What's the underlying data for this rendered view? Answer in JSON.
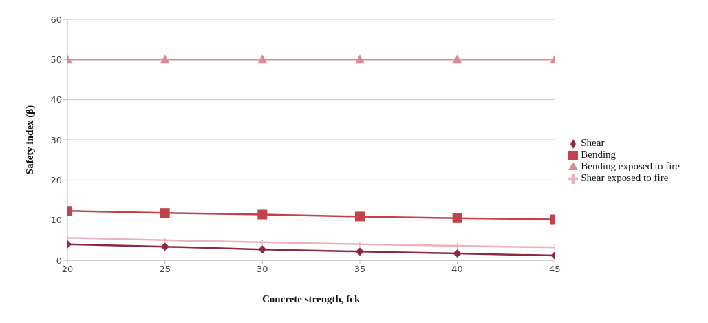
{
  "chart_data": {
    "type": "line",
    "xlabel": "Concrete strength, fck",
    "ylabel": "Safety index (β)",
    "x": [
      20,
      25,
      30,
      35,
      40,
      45
    ],
    "series": [
      {
        "name": "Shear",
        "color": "#8b2a3c",
        "marker": "diamond",
        "values": [
          4.0,
          3.4,
          2.7,
          2.2,
          1.7,
          1.2
        ]
      },
      {
        "name": "Bending",
        "color": "#c0434b",
        "marker": "square",
        "values": [
          12.3,
          11.8,
          11.4,
          10.9,
          10.5,
          10.2
        ]
      },
      {
        "name": "Bending exposed to fire",
        "color": "#d98a94",
        "marker": "triangle",
        "values": [
          50,
          50,
          50,
          50,
          50,
          50
        ]
      },
      {
        "name": "Shear exposed to fire",
        "color": "#e8b4bc",
        "marker": "cross",
        "values": [
          5.6,
          5.0,
          4.5,
          4.0,
          3.6,
          3.2
        ]
      }
    ],
    "xlim": [
      20,
      45
    ],
    "xticks": [
      20,
      25,
      30,
      35,
      40,
      45
    ],
    "ylim": [
      0,
      60
    ],
    "yticks": [
      0,
      10,
      20,
      30,
      40,
      50,
      60
    ],
    "grid": "y",
    "legend": "right"
  }
}
